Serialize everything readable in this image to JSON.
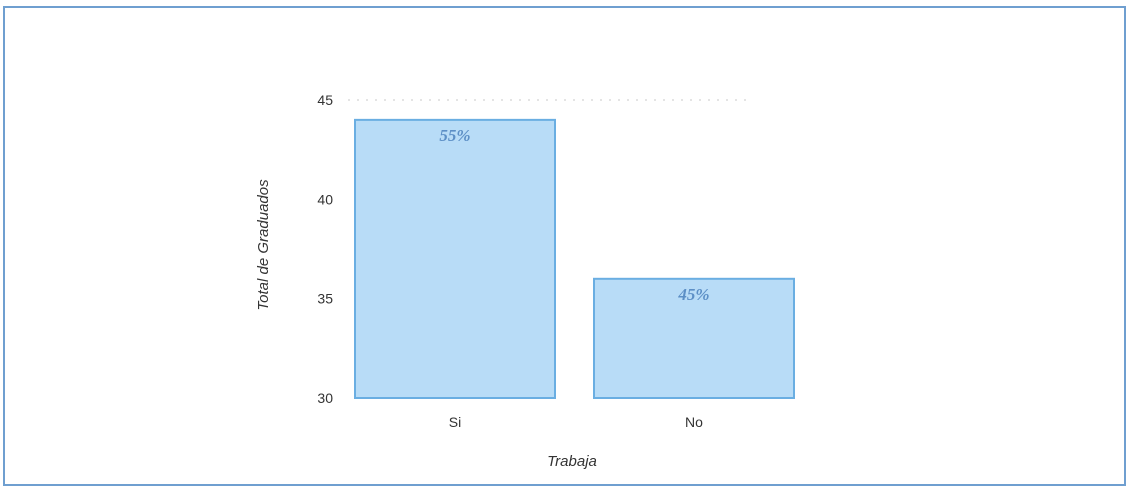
{
  "chart_data": {
    "type": "bar",
    "categories": [
      "Si",
      "No"
    ],
    "values": [
      44,
      36
    ],
    "data_labels": [
      "55%",
      "45%"
    ],
    "title": "",
    "xlabel": "Trabaja",
    "ylabel": "Total de Graduados",
    "ylim": [
      30,
      45
    ],
    "yticks": [
      30,
      35,
      40,
      45
    ],
    "grid": false,
    "legend": "none",
    "bar_fill": "#b8dcf7",
    "bar_stroke": "#6aaee2",
    "frame_color": "#6f9fd0",
    "label_color": "#5c8fc6"
  }
}
